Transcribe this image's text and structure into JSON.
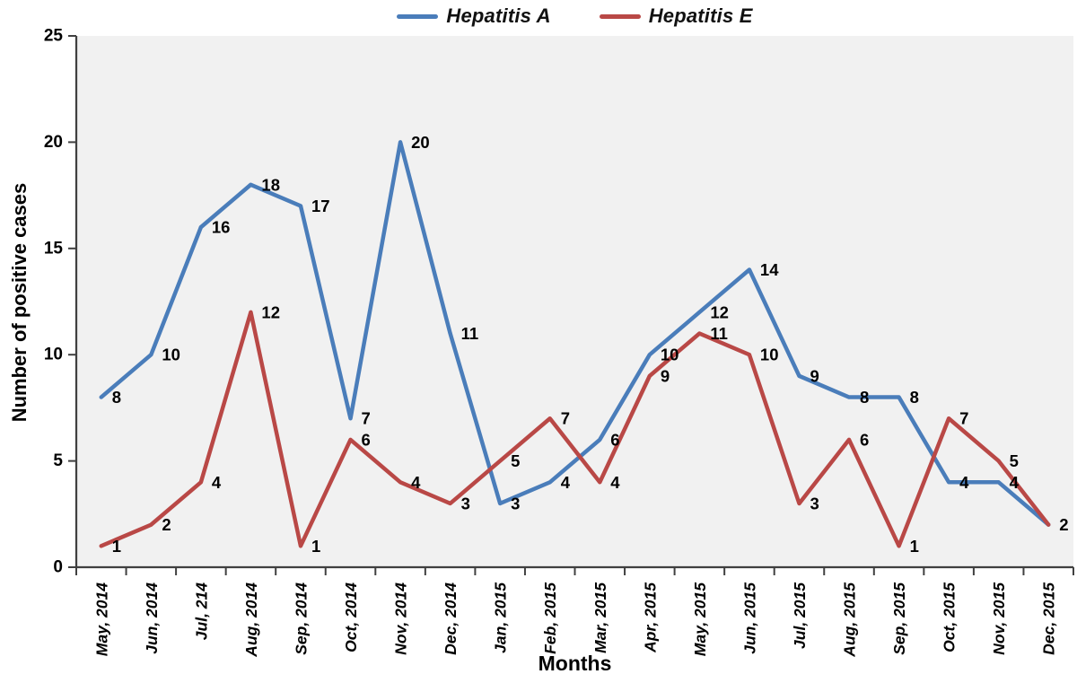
{
  "chart_data": {
    "type": "line",
    "categories": [
      "May, 2014",
      "Jun, 2014",
      "Jul, 214",
      "Aug, 2014",
      "Sep, 2014",
      "Oct, 2014",
      "Nov, 2014",
      "Dec, 2014",
      "Jan, 2015",
      "Feb, 2015",
      "Mar, 2015",
      "Apr, 2015",
      "May, 2015",
      "Jun, 2015",
      "Jul, 2015",
      "Aug, 2015",
      "Sep, 2015",
      "Oct, 2015",
      "Nov, 2015",
      "Dec, 2015"
    ],
    "series": [
      {
        "name": "Hepatitis A",
        "color": "#4A7DBA",
        "values": [
          8,
          10,
          16,
          18,
          17,
          7,
          20,
          11,
          3,
          4,
          6,
          10,
          12,
          14,
          9,
          8,
          8,
          4,
          4,
          2
        ]
      },
      {
        "name": "Hepatitis E",
        "color": "#B94846",
        "values": [
          1,
          2,
          4,
          12,
          1,
          6,
          4,
          3,
          5,
          7,
          4,
          9,
          11,
          10,
          3,
          6,
          1,
          7,
          5,
          2
        ]
      }
    ],
    "title": "",
    "xlabel": "Months",
    "ylabel": "Number of positive cases",
    "ylim": [
      0,
      25
    ],
    "yticks": [
      0,
      5,
      10,
      15,
      20,
      25
    ],
    "grid": false,
    "legend_position": "top",
    "data_labels": true,
    "plot_bg": "#F1F1F1",
    "axis_color": "#404040",
    "text_color": "#000000"
  }
}
